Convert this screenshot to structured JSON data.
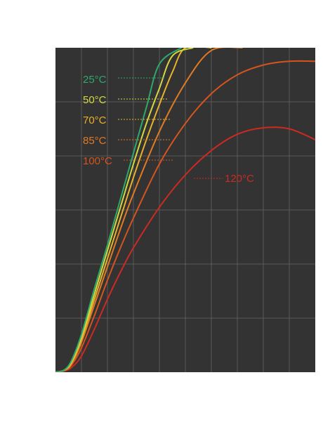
{
  "chart_data": {
    "type": "line",
    "title": "",
    "xlabel": "",
    "ylabel": "",
    "grid": true,
    "legend": "inline-labels",
    "colors": {
      "plot_background": "#333333",
      "grid": "#5a5a5a",
      "page_background": "#ffffff"
    },
    "xlim": [
      0,
      10
    ],
    "ylim": [
      0,
      6
    ],
    "series": [
      {
        "name": "25°C",
        "color": "#2fa86a",
        "points": [
          [
            0,
            0
          ],
          [
            0.3,
            0.03
          ],
          [
            0.6,
            0.2
          ],
          [
            1,
            0.7
          ],
          [
            1.5,
            1.55
          ],
          [
            2,
            2.35
          ],
          [
            2.5,
            3.2
          ],
          [
            3,
            4.05
          ],
          [
            3.5,
            4.9
          ],
          [
            4,
            5.7
          ],
          [
            4.85,
            6.0
          ]
        ]
      },
      {
        "name": "50°C",
        "color": "#d4d840",
        "points": [
          [
            0,
            0
          ],
          [
            0.3,
            0.03
          ],
          [
            0.6,
            0.18
          ],
          [
            1,
            0.65
          ],
          [
            1.5,
            1.45
          ],
          [
            2,
            2.25
          ],
          [
            2.5,
            3.05
          ],
          [
            3,
            3.85
          ],
          [
            3.5,
            4.6
          ],
          [
            4,
            5.25
          ],
          [
            4.5,
            5.85
          ],
          [
            5.3,
            6.0
          ]
        ]
      },
      {
        "name": "70°C",
        "color": "#e8b22a",
        "points": [
          [
            0,
            0
          ],
          [
            0.3,
            0.03
          ],
          [
            0.6,
            0.16
          ],
          [
            1,
            0.6
          ],
          [
            1.5,
            1.35
          ],
          [
            2,
            2.1
          ],
          [
            2.5,
            2.85
          ],
          [
            3,
            3.6
          ],
          [
            3.5,
            4.3
          ],
          [
            4,
            4.95
          ],
          [
            4.5,
            5.55
          ],
          [
            5,
            6.0
          ],
          [
            6,
            6.0
          ]
        ]
      },
      {
        "name": "85°C",
        "color": "#e07a25",
        "points": [
          [
            0,
            0
          ],
          [
            0.3,
            0.03
          ],
          [
            0.6,
            0.14
          ],
          [
            1,
            0.55
          ],
          [
            1.5,
            1.25
          ],
          [
            2,
            1.95
          ],
          [
            2.5,
            2.65
          ],
          [
            3,
            3.3
          ],
          [
            4,
            4.45
          ],
          [
            5,
            5.35
          ],
          [
            6,
            5.95
          ],
          [
            7.2,
            6.0
          ]
        ]
      },
      {
        "name": "100°C",
        "color": "#d4541e",
        "points": [
          [
            0,
            0
          ],
          [
            0.3,
            0.02
          ],
          [
            0.6,
            0.12
          ],
          [
            1,
            0.45
          ],
          [
            1.5,
            1.05
          ],
          [
            2,
            1.7
          ],
          [
            2.5,
            2.3
          ],
          [
            3,
            2.85
          ],
          [
            4,
            3.85
          ],
          [
            5,
            4.6
          ],
          [
            6,
            5.15
          ],
          [
            7,
            5.5
          ],
          [
            8,
            5.68
          ],
          [
            9,
            5.75
          ],
          [
            10,
            5.75
          ]
        ]
      },
      {
        "name": "120°C",
        "color": "#cc2a22",
        "points": [
          [
            0,
            0
          ],
          [
            0.3,
            0.02
          ],
          [
            0.6,
            0.08
          ],
          [
            1,
            0.3
          ],
          [
            1.5,
            0.8
          ],
          [
            2,
            1.35
          ],
          [
            2.5,
            1.85
          ],
          [
            3,
            2.3
          ],
          [
            4,
            3.05
          ],
          [
            5,
            3.65
          ],
          [
            6,
            4.1
          ],
          [
            7,
            4.4
          ],
          [
            8,
            4.52
          ],
          [
            9,
            4.5
          ],
          [
            10,
            4.3
          ]
        ]
      }
    ]
  }
}
